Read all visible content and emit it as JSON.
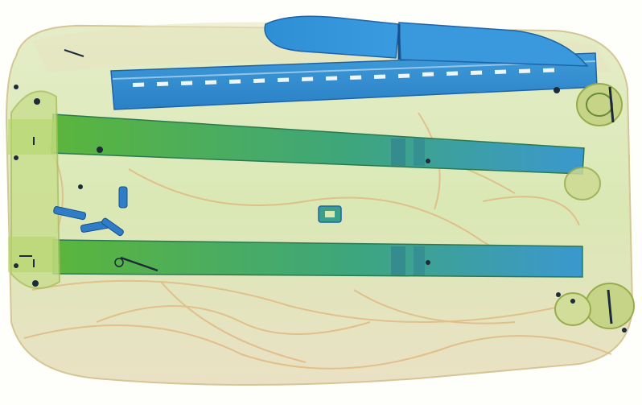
{
  "scan": {
    "colors": {
      "background": "#fdfdf7",
      "organic": "#e0b47c",
      "organic_light": "#eccfa0",
      "mixed": "#a9c96b",
      "mixed_light": "#d9e6b5",
      "inorganic": "#2f8fd0",
      "inorganic_dark": "#1f63a8",
      "metal_green": "#4fb34a",
      "dark": "#1d2a3a"
    },
    "icons": [
      "bag-icon",
      "knife-icon",
      "rail-icon",
      "wheel-icon",
      "zipper-icon",
      "buckle-icon"
    ]
  }
}
